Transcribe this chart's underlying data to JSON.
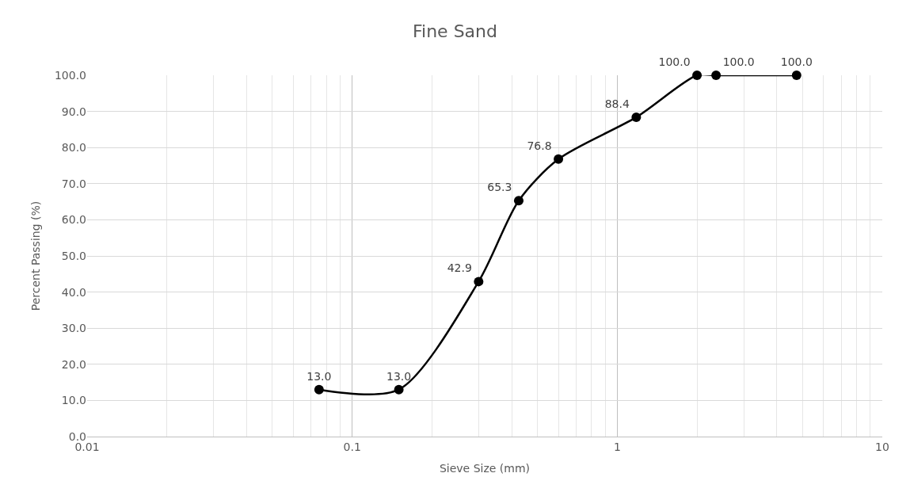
{
  "chart_data": {
    "type": "line",
    "title": "Fine Sand",
    "xlabel": "Sieve Size (mm)",
    "ylabel": "Percent Passing (%)",
    "x": [
      0.075,
      0.15,
      0.3,
      0.425,
      0.6,
      1.18,
      2.0,
      2.36,
      4.75
    ],
    "series": [
      {
        "color": "#000000",
        "values": [
          13.0,
          13.0,
          42.9,
          65.3,
          76.8,
          88.4,
          100.0,
          100.0,
          100.0
        ],
        "value_labels": [
          "13.0",
          "13.0",
          "42.9",
          "65.3",
          "76.8",
          "88.4",
          "100.0",
          "100.0",
          "100.0"
        ]
      }
    ],
    "log": "x",
    "xlim": [
      0.01,
      10
    ],
    "xticks": [
      0.01,
      0.1,
      1,
      10
    ],
    "ylim": [
      0,
      100
    ],
    "yticks": [
      {
        "value": 0,
        "label": "0.0"
      },
      {
        "value": 10,
        "label": "10.0"
      },
      {
        "value": 20,
        "label": "20.0"
      },
      {
        "value": 30,
        "label": "30.0"
      },
      {
        "value": 40,
        "label": "40.0"
      },
      {
        "value": 50,
        "label": "50.0"
      },
      {
        "value": 60,
        "label": "60.0"
      },
      {
        "value": 70,
        "label": "70.0"
      },
      {
        "value": 80,
        "label": "80.0"
      },
      {
        "value": 90,
        "label": "90.0"
      },
      {
        "value": 100,
        "label": "100.0"
      }
    ],
    "grid": true,
    "marker": "circle",
    "line_style": "solid"
  }
}
